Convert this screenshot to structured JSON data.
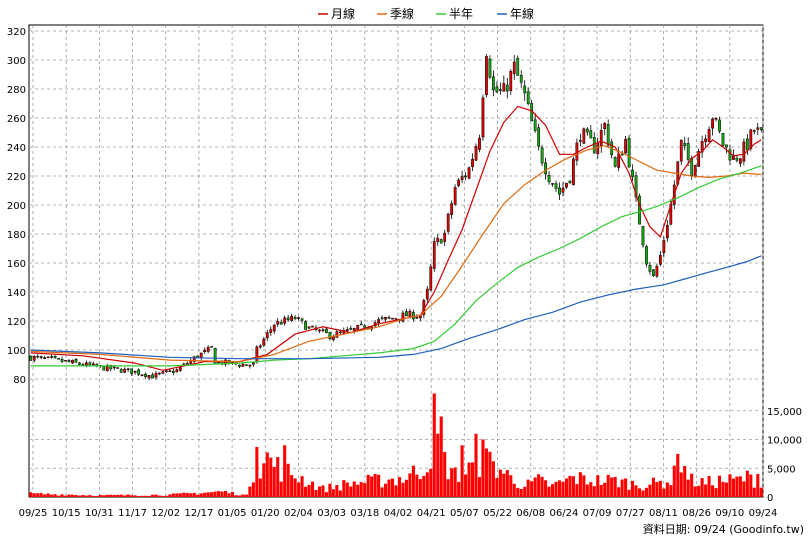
{
  "chart_data": {
    "type": "candlestick",
    "legend": [
      {
        "label": "月線",
        "color": "#cc0000"
      },
      {
        "label": "季線",
        "color": "#e06a10"
      },
      {
        "label": "半年",
        "color": "#33cc33"
      },
      {
        "label": "年線",
        "color": "#1f5fbf"
      }
    ],
    "price_axis": {
      "ylim": [
        80,
        320
      ],
      "ticks": [
        80,
        100,
        120,
        140,
        160,
        180,
        200,
        220,
        240,
        260,
        280,
        300,
        320
      ]
    },
    "volume_axis": {
      "ylim": [
        0,
        20000
      ],
      "ticks": [
        0,
        5000,
        10000,
        15000
      ],
      "tick_labels": [
        "0",
        "5,000",
        "10,000",
        "15,000"
      ]
    },
    "x_ticks": [
      "09/25",
      "10/15",
      "10/31",
      "11/17",
      "12/02",
      "12/17",
      "01/05",
      "01/20",
      "02/04",
      "03/03",
      "03/18",
      "04/02",
      "04/21",
      "05/07",
      "05/22",
      "06/08",
      "06/24",
      "07/09",
      "07/27",
      "08/11",
      "08/26",
      "09/10",
      "09/24"
    ],
    "grid": true,
    "legend_position": "top-center",
    "source_note": "資料日期: 09/24 (Goodinfo.tw)",
    "close_trend": [
      [
        0,
        95
      ],
      [
        10,
        92
      ],
      [
        20,
        88
      ],
      [
        30,
        85
      ],
      [
        35,
        82
      ],
      [
        42,
        86
      ],
      [
        48,
        96
      ],
      [
        52,
        101
      ],
      [
        53,
        92
      ],
      [
        60,
        90
      ],
      [
        64,
        90
      ],
      [
        65,
        100
      ],
      [
        70,
        118
      ],
      [
        76,
        122
      ],
      [
        80,
        115
      ],
      [
        86,
        110
      ],
      [
        92,
        113
      ],
      [
        100,
        120
      ],
      [
        108,
        124
      ],
      [
        112,
        124
      ],
      [
        114,
        140
      ],
      [
        116,
        172
      ],
      [
        119,
        180
      ],
      [
        122,
        212
      ],
      [
        126,
        225
      ],
      [
        129,
        250
      ],
      [
        131,
        308
      ],
      [
        133,
        278
      ],
      [
        136,
        278
      ],
      [
        139,
        295
      ],
      [
        142,
        275
      ],
      [
        146,
        238
      ],
      [
        149,
        220
      ],
      [
        152,
        208
      ],
      [
        155,
        220
      ],
      [
        158,
        250
      ],
      [
        162,
        240
      ],
      [
        165,
        255
      ],
      [
        168,
        225
      ],
      [
        171,
        245
      ],
      [
        174,
        202
      ],
      [
        177,
        162
      ],
      [
        179,
        150
      ],
      [
        181,
        165
      ],
      [
        184,
        200
      ],
      [
        187,
        242
      ],
      [
        190,
        225
      ],
      [
        193,
        245
      ],
      [
        196,
        262
      ],
      [
        199,
        242
      ],
      [
        202,
        232
      ],
      [
        204,
        235
      ],
      [
        206,
        242
      ],
      [
        208,
        252
      ],
      [
        210,
        248
      ]
    ],
    "series": [
      {
        "name": "月線",
        "points": [
          [
            0,
            98
          ],
          [
            15,
            96
          ],
          [
            30,
            91
          ],
          [
            38,
            86
          ],
          [
            50,
            92
          ],
          [
            60,
            92
          ],
          [
            68,
            97
          ],
          [
            76,
            111
          ],
          [
            84,
            116
          ],
          [
            92,
            112
          ],
          [
            100,
            118
          ],
          [
            108,
            122
          ],
          [
            112,
            124
          ],
          [
            116,
            140
          ],
          [
            120,
            162
          ],
          [
            124,
            183
          ],
          [
            128,
            210
          ],
          [
            132,
            237
          ],
          [
            136,
            257
          ],
          [
            140,
            268
          ],
          [
            144,
            265
          ],
          [
            148,
            255
          ],
          [
            152,
            235
          ],
          [
            156,
            235
          ],
          [
            160,
            240
          ],
          [
            164,
            244
          ],
          [
            168,
            240
          ],
          [
            172,
            222
          ],
          [
            175,
            200
          ],
          [
            178,
            185
          ],
          [
            181,
            178
          ],
          [
            184,
            200
          ],
          [
            187,
            222
          ],
          [
            190,
            232
          ],
          [
            193,
            237
          ],
          [
            196,
            245
          ],
          [
            199,
            240
          ],
          [
            202,
            234
          ],
          [
            205,
            235
          ],
          [
            208,
            242
          ],
          [
            210,
            245
          ]
        ]
      },
      {
        "name": "季線",
        "points": [
          [
            0,
            99
          ],
          [
            20,
            97
          ],
          [
            40,
            93
          ],
          [
            60,
            92
          ],
          [
            70,
            97
          ],
          [
            80,
            106
          ],
          [
            90,
            111
          ],
          [
            100,
            116
          ],
          [
            108,
            122
          ],
          [
            112,
            124
          ],
          [
            118,
            137
          ],
          [
            124,
            158
          ],
          [
            130,
            180
          ],
          [
            136,
            201
          ],
          [
            142,
            214
          ],
          [
            148,
            224
          ],
          [
            154,
            232
          ],
          [
            160,
            238
          ],
          [
            165,
            241
          ],
          [
            170,
            236
          ],
          [
            175,
            230
          ],
          [
            180,
            224
          ],
          [
            185,
            222
          ],
          [
            190,
            220
          ],
          [
            195,
            219
          ],
          [
            200,
            220
          ],
          [
            205,
            222
          ],
          [
            210,
            221
          ]
        ]
      },
      {
        "name": "半年",
        "points": [
          [
            0,
            89
          ],
          [
            20,
            89
          ],
          [
            40,
            89
          ],
          [
            60,
            91
          ],
          [
            70,
            93
          ],
          [
            80,
            94
          ],
          [
            90,
            96
          ],
          [
            100,
            98
          ],
          [
            110,
            101
          ],
          [
            116,
            106
          ],
          [
            122,
            118
          ],
          [
            128,
            134
          ],
          [
            134,
            146
          ],
          [
            140,
            157
          ],
          [
            146,
            164
          ],
          [
            152,
            170
          ],
          [
            158,
            177
          ],
          [
            164,
            185
          ],
          [
            170,
            192
          ],
          [
            176,
            196
          ],
          [
            180,
            199
          ],
          [
            186,
            205
          ],
          [
            192,
            212
          ],
          [
            198,
            218
          ],
          [
            204,
            222
          ],
          [
            210,
            227
          ]
        ]
      },
      {
        "name": "年線",
        "points": [
          [
            0,
            100
          ],
          [
            20,
            98
          ],
          [
            40,
            95
          ],
          [
            60,
            94
          ],
          [
            80,
            94
          ],
          [
            100,
            95
          ],
          [
            110,
            97
          ],
          [
            118,
            101
          ],
          [
            126,
            108
          ],
          [
            134,
            114
          ],
          [
            142,
            121
          ],
          [
            150,
            126
          ],
          [
            158,
            133
          ],
          [
            166,
            138
          ],
          [
            174,
            142
          ],
          [
            182,
            145
          ],
          [
            188,
            149
          ],
          [
            194,
            153
          ],
          [
            200,
            157
          ],
          [
            206,
            161
          ],
          [
            210,
            165
          ]
        ]
      }
    ],
    "volume_profile": [
      [
        0,
        600
      ],
      [
        20,
        300
      ],
      [
        40,
        400
      ],
      [
        55,
        1000
      ],
      [
        62,
        300
      ],
      [
        64,
        5000
      ],
      [
        68,
        7000
      ],
      [
        72,
        5000
      ],
      [
        76,
        4000
      ],
      [
        84,
        1500
      ],
      [
        92,
        2500
      ],
      [
        100,
        3000
      ],
      [
        108,
        3500
      ],
      [
        114,
        6000
      ],
      [
        116,
        12000
      ],
      [
        118,
        7000
      ],
      [
        122,
        4000
      ],
      [
        126,
        5000
      ],
      [
        130,
        7000
      ],
      [
        134,
        5500
      ],
      [
        138,
        3500
      ],
      [
        142,
        2000
      ],
      [
        146,
        3000
      ],
      [
        150,
        2000
      ],
      [
        156,
        3500
      ],
      [
        162,
        3000
      ],
      [
        168,
        3000
      ],
      [
        172,
        2500
      ],
      [
        176,
        2200
      ],
      [
        180,
        2500
      ],
      [
        184,
        3000
      ],
      [
        187,
        6000
      ],
      [
        190,
        3000
      ],
      [
        194,
        2500
      ],
      [
        198,
        3000
      ],
      [
        202,
        3000
      ],
      [
        206,
        3500
      ],
      [
        210,
        3000
      ]
    ],
    "volume_peaks": [
      [
        65,
        8700
      ],
      [
        73,
        9000
      ],
      [
        116,
        18000
      ],
      [
        118,
        14000
      ],
      [
        124,
        9000
      ],
      [
        128,
        11000
      ],
      [
        130,
        10000
      ],
      [
        186,
        7500
      ],
      [
        209,
        4000
      ]
    ]
  }
}
